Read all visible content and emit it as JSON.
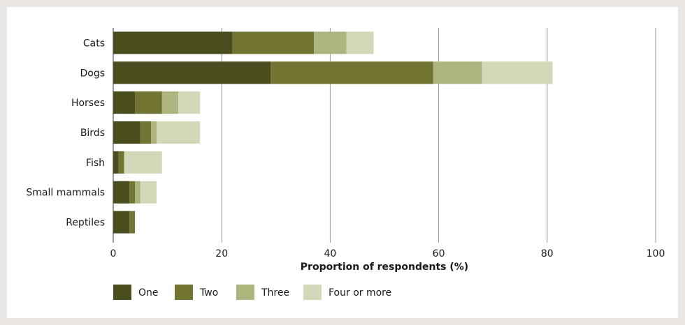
{
  "chart_data": {
    "type": "bar",
    "orientation": "horizontal",
    "stacked": true,
    "categories": [
      "Cats",
      "Dogs",
      "Horses",
      "Birds",
      "Fish",
      "Small mammals",
      "Reptiles"
    ],
    "series": [
      {
        "name": "One",
        "color": "#4a4e1e",
        "values": [
          22,
          29,
          4,
          5,
          1,
          3,
          3
        ]
      },
      {
        "name": "Two",
        "color": "#727531",
        "values": [
          15,
          30,
          5,
          2,
          1,
          1,
          1
        ]
      },
      {
        "name": "Three",
        "color": "#adb47e",
        "values": [
          6,
          9,
          3,
          1,
          0,
          1,
          0
        ]
      },
      {
        "name": "Four or more",
        "color": "#d5d8b8",
        "values": [
          5,
          13,
          4,
          8,
          7,
          3,
          0
        ]
      }
    ],
    "xlabel": "Proportion of respondents (%)",
    "ylabel": "",
    "xlim": [
      0,
      100
    ],
    "xticks": [
      0,
      20,
      40,
      60,
      80,
      100
    ],
    "grid": "vertical",
    "legend_position": "bottom"
  }
}
